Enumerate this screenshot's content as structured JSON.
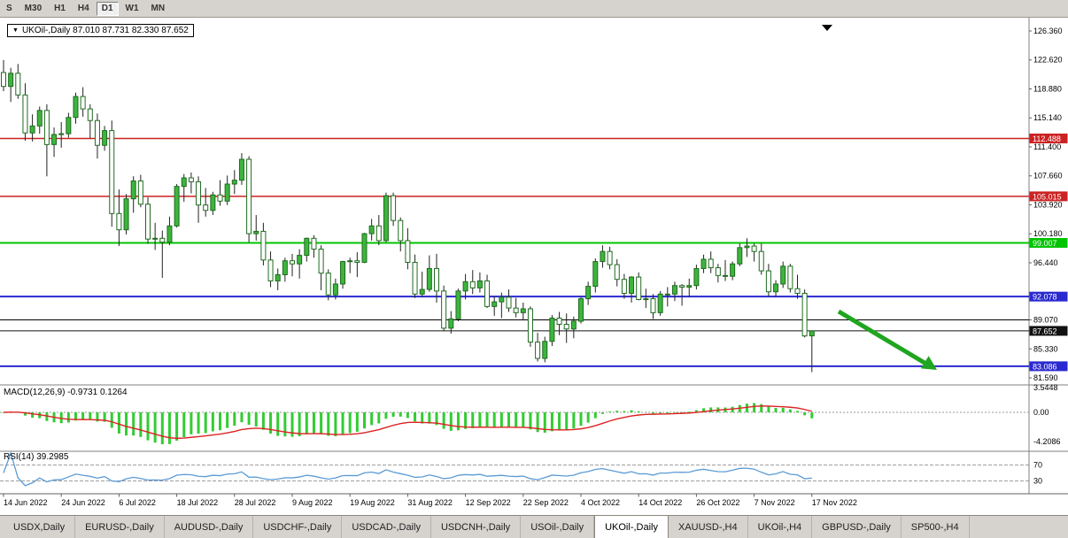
{
  "toolbar": {
    "buttons": [
      "S",
      "M30",
      "H1",
      "H4",
      "D1",
      "W1",
      "MN"
    ],
    "active": "D1"
  },
  "chart": {
    "dropdown_glyph": "▼",
    "title_text": "UKOil-,Daily  87.010 87.731 82.330 87.652",
    "macd_title": "MACD(12,26,9) -0.9731 0.1264",
    "rsi_title": "RSI(14) 39.2985"
  },
  "tabs": {
    "active_index": 7,
    "items": [
      "USDX,Daily",
      "EURUSD-,Daily",
      "AUDUSD-,Daily",
      "USDCHF-,Daily",
      "USDCAD-,Daily",
      "USDCNH-,Daily",
      "USOil-,Daily",
      "UKOil-,Daily",
      "XAUUSD-,H4",
      "UKOil-,H4",
      "GBPUSD-,Daily",
      "SP500-,H4"
    ]
  },
  "chart_data": {
    "type": "candlestick",
    "symbol": "UKOil-",
    "timeframe": "Daily",
    "ohlc_current": {
      "open": "87.010",
      "high": "87.731",
      "low": "82.330",
      "close": "87.652"
    },
    "y_ticks": [
      126.36,
      122.62,
      118.88,
      115.14,
      111.4,
      107.66,
      103.92,
      100.18,
      96.44,
      89.07,
      85.33,
      81.59
    ],
    "hlines": [
      {
        "price": 112.488,
        "label": "112.488",
        "color": "#cc2222",
        "width": 1.5
      },
      {
        "price": 105.015,
        "label": "105.015",
        "color": "#cc2222",
        "width": 1.5
      },
      {
        "price": 99.007,
        "label": "99.007",
        "color": "#00c400",
        "width": 2
      },
      {
        "price": 92.078,
        "label": "92.078",
        "color": "#2a2ad0",
        "width": 2
      },
      {
        "price": 89.07,
        "label": "",
        "color": "#000000",
        "width": 1
      },
      {
        "price": 87.652,
        "label": "87.652",
        "color": "#111111",
        "width": 1
      },
      {
        "price": 83.086,
        "label": "83.086",
        "color": "#2a2ad0",
        "width": 2
      }
    ],
    "x_labels": [
      {
        "t": "14 Jun 2022",
        "b": 0
      },
      {
        "t": "24 Jun 2022",
        "b": 8
      },
      {
        "t": "6 Jul 2022",
        "b": 16
      },
      {
        "t": "18 Jul 2022",
        "b": 24
      },
      {
        "t": "28 Jul 2022",
        "b": 32
      },
      {
        "t": "9 Aug 2022",
        "b": 40
      },
      {
        "t": "19 Aug 2022",
        "b": 48
      },
      {
        "t": "31 Aug 2022",
        "b": 56
      },
      {
        "t": "12 Sep 2022",
        "b": 64
      },
      {
        "t": "22 Sep 2022",
        "b": 72
      },
      {
        "t": "4 Oct 2022",
        "b": 80
      },
      {
        "t": "14 Oct 2022",
        "b": 88
      },
      {
        "t": "26 Oct 2022",
        "b": 96
      },
      {
        "t": "7 Nov 2022",
        "b": 104
      },
      {
        "t": "17 Nov 2022",
        "b": 112
      }
    ],
    "macd_levels": [
      {
        "label": "3.5448",
        "value": 3.5448
      },
      {
        "label": "0.00",
        "value": 0
      },
      {
        "label": "-4.2086",
        "value": -4.2086
      }
    ],
    "rsi_levels": [
      {
        "label": "70",
        "value": 70
      },
      {
        "label": "30",
        "value": 30
      }
    ],
    "arrow_color": "#1fa51f",
    "candles": [
      [
        121.0,
        122.6,
        118.6,
        119.2
      ],
      [
        119.2,
        121.6,
        117.2,
        120.9
      ],
      [
        120.9,
        122.1,
        117.6,
        118.1
      ],
      [
        118.1,
        119.6,
        112.2,
        113.2
      ],
      [
        113.2,
        115.6,
        112.1,
        114.1
      ],
      [
        114.1,
        116.6,
        113.1,
        116.1
      ],
      [
        116.1,
        116.9,
        107.6,
        111.7
      ],
      [
        111.7,
        113.9,
        110.1,
        113.0
      ],
      [
        113.0,
        114.6,
        111.3,
        113.1
      ],
      [
        113.1,
        115.8,
        112.6,
        115.2
      ],
      [
        115.2,
        118.4,
        114.4,
        117.9
      ],
      [
        117.9,
        119.1,
        115.3,
        116.3
      ],
      [
        116.3,
        116.9,
        112.5,
        114.8
      ],
      [
        114.8,
        115.7,
        109.9,
        111.6
      ],
      [
        111.6,
        114.1,
        110.9,
        113.5
      ],
      [
        113.5,
        114.8,
        101.1,
        102.8
      ],
      [
        102.8,
        105.9,
        98.6,
        100.7
      ],
      [
        100.7,
        105.3,
        100.1,
        104.7
      ],
      [
        104.7,
        107.6,
        102.9,
        107.0
      ],
      [
        107.0,
        107.8,
        103.6,
        104.0
      ],
      [
        104.0,
        104.9,
        98.9,
        99.5
      ],
      [
        99.5,
        101.6,
        98.1,
        99.6
      ],
      [
        99.6,
        100.6,
        94.5,
        99.1
      ],
      [
        99.1,
        102.4,
        98.7,
        101.2
      ],
      [
        101.2,
        106.6,
        101.0,
        106.3
      ],
      [
        106.3,
        107.9,
        104.3,
        107.4
      ],
      [
        107.4,
        108.1,
        105.4,
        106.9
      ],
      [
        106.9,
        107.6,
        101.6,
        103.9
      ],
      [
        103.9,
        106.1,
        102.4,
        103.2
      ],
      [
        103.2,
        105.6,
        102.6,
        105.2
      ],
      [
        105.2,
        107.1,
        103.8,
        104.4
      ],
      [
        104.4,
        107.7,
        103.9,
        106.6
      ],
      [
        106.6,
        108.4,
        105.3,
        107.1
      ],
      [
        107.1,
        110.6,
        106.5,
        109.8
      ],
      [
        109.8,
        110.2,
        99.1,
        100.2
      ],
      [
        100.2,
        102.6,
        99.3,
        100.5
      ],
      [
        100.5,
        101.6,
        96.1,
        96.8
      ],
      [
        96.8,
        97.9,
        93.3,
        94.1
      ],
      [
        94.1,
        95.7,
        92.9,
        94.9
      ],
      [
        94.9,
        97.1,
        94.0,
        96.7
      ],
      [
        96.7,
        97.6,
        94.7,
        96.3
      ],
      [
        96.3,
        98.2,
        94.4,
        97.4
      ],
      [
        97.4,
        99.7,
        96.6,
        99.6
      ],
      [
        99.6,
        100.0,
        97.1,
        98.2
      ],
      [
        98.2,
        98.7,
        92.9,
        95.1
      ],
      [
        95.1,
        95.6,
        91.6,
        92.3
      ],
      [
        92.3,
        94.4,
        91.7,
        93.7
      ],
      [
        93.7,
        96.7,
        93.1,
        96.6
      ],
      [
        96.6,
        97.1,
        95.1,
        96.7
      ],
      [
        96.7,
        97.8,
        94.6,
        96.5
      ],
      [
        96.5,
        100.3,
        96.4,
        100.2
      ],
      [
        100.2,
        102.1,
        99.3,
        101.2
      ],
      [
        101.2,
        102.6,
        98.7,
        99.3
      ],
      [
        99.3,
        105.5,
        99.1,
        105.1
      ],
      [
        105.1,
        105.5,
        101.2,
        101.9
      ],
      [
        101.9,
        102.3,
        97.9,
        99.3
      ],
      [
        99.3,
        100.9,
        95.6,
        96.5
      ],
      [
        96.5,
        97.5,
        91.9,
        92.4
      ],
      [
        92.4,
        95.3,
        92.0,
        93.0
      ],
      [
        93.0,
        97.4,
        92.7,
        95.7
      ],
      [
        95.7,
        97.6,
        91.3,
        92.8
      ],
      [
        92.8,
        93.5,
        87.6,
        88.0
      ],
      [
        88.0,
        90.2,
        87.3,
        89.2
      ],
      [
        89.2,
        93.1,
        88.9,
        92.8
      ],
      [
        92.8,
        95.0,
        91.7,
        94.0
      ],
      [
        94.0,
        95.5,
        92.4,
        93.2
      ],
      [
        93.2,
        95.2,
        92.6,
        94.1
      ],
      [
        94.1,
        94.9,
        90.6,
        90.8
      ],
      [
        90.8,
        92.1,
        89.6,
        91.4
      ],
      [
        91.4,
        92.6,
        89.3,
        92.0
      ],
      [
        92.0,
        93.0,
        90.1,
        90.6
      ],
      [
        90.6,
        91.9,
        89.4,
        90.0
      ],
      [
        90.0,
        91.3,
        89.0,
        90.5
      ],
      [
        90.5,
        90.8,
        85.6,
        86.2
      ],
      [
        86.2,
        87.4,
        83.7,
        84.1
      ],
      [
        84.1,
        86.9,
        83.6,
        86.3
      ],
      [
        86.3,
        89.7,
        85.7,
        89.3
      ],
      [
        89.3,
        90.1,
        87.1,
        88.5
      ],
      [
        88.5,
        89.9,
        86.1,
        87.9
      ],
      [
        87.9,
        89.5,
        86.7,
        88.9
      ],
      [
        88.9,
        92.0,
        88.6,
        91.8
      ],
      [
        91.8,
        94.0,
        91.0,
        93.4
      ],
      [
        93.4,
        97.0,
        92.6,
        96.6
      ],
      [
        96.6,
        98.7,
        95.8,
        97.9
      ],
      [
        97.9,
        98.5,
        95.6,
        96.2
      ],
      [
        96.2,
        96.9,
        93.4,
        94.3
      ],
      [
        94.3,
        95.0,
        91.8,
        92.5
      ],
      [
        92.5,
        94.7,
        91.3,
        94.6
      ],
      [
        94.6,
        95.2,
        91.6,
        91.7
      ],
      [
        91.7,
        93.1,
        90.6,
        91.8
      ],
      [
        91.8,
        92.4,
        89.2,
        90.0
      ],
      [
        90.0,
        92.8,
        89.6,
        92.4
      ],
      [
        92.4,
        93.3,
        90.8,
        92.4
      ],
      [
        92.4,
        94.0,
        91.5,
        93.5
      ],
      [
        93.5,
        93.7,
        90.9,
        93.3
      ],
      [
        93.3,
        94.4,
        92.0,
        93.5
      ],
      [
        93.5,
        96.2,
        93.0,
        95.7
      ],
      [
        95.7,
        97.5,
        95.1,
        96.9
      ],
      [
        96.9,
        97.9,
        95.1,
        95.8
      ],
      [
        95.8,
        96.3,
        93.9,
        94.8
      ],
      [
        94.8,
        96.8,
        94.1,
        94.7
      ],
      [
        94.7,
        96.6,
        94.2,
        96.3
      ],
      [
        96.3,
        98.9,
        96.0,
        98.4
      ],
      [
        98.4,
        99.6,
        97.2,
        98.6
      ],
      [
        98.6,
        98.9,
        96.6,
        97.9
      ],
      [
        97.9,
        98.9,
        94.9,
        95.4
      ],
      [
        95.4,
        96.3,
        92.1,
        92.7
      ],
      [
        92.7,
        94.2,
        92.0,
        93.7
      ],
      [
        93.7,
        96.6,
        93.2,
        96.0
      ],
      [
        96.0,
        96.3,
        92.6,
        93.1
      ],
      [
        93.1,
        94.9,
        91.8,
        92.5
      ],
      [
        92.5,
        93.0,
        86.8,
        87.0
      ],
      [
        87.01,
        87.731,
        82.33,
        87.652
      ]
    ]
  }
}
